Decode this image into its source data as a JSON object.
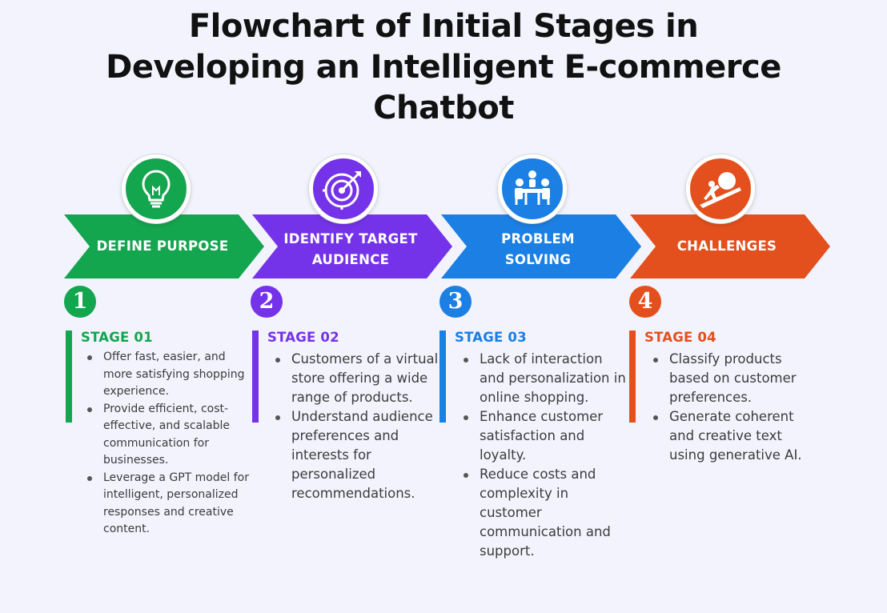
{
  "title": {
    "line1": "Flowchart of Initial Stages in",
    "line2": "Developing an Intelligent E-commerce",
    "line3": "Chatbot"
  },
  "colors": {
    "stage1": "#14a54f",
    "stage2": "#7433e8",
    "stage3": "#1b7fe3",
    "stage4": "#e4501d"
  },
  "stages": [
    {
      "icon": "lightbulb-icon",
      "arrow_lines": [
        "DEFINE PURPOSE"
      ],
      "number": "1",
      "stage_label": "STAGE 01",
      "bullets": [
        "Offer fast, easier, and more satisfying shopping experience.",
        "Provide efficient, cost-effective, and scalable communication for businesses.",
        "Leverage a GPT model for intelligent, personalized responses and creative content."
      ]
    },
    {
      "icon": "target-arrow-icon",
      "arrow_lines": [
        "IDENTIFY TARGET",
        "AUDIENCE"
      ],
      "number": "2",
      "stage_label": "STAGE 02",
      "bullets": [
        "Customers of a virtual store offering a wide range of products.",
        "Understand audience preferences and interests for personalized recommendations."
      ]
    },
    {
      "icon": "team-meeting-icon",
      "arrow_lines": [
        "PROBLEM",
        "SOLVING"
      ],
      "number": "3",
      "stage_label": "STAGE 03",
      "bullets": [
        "Lack of interaction and personalization in online shopping.",
        "Enhance customer satisfaction and loyalty.",
        "Reduce costs and complexity in customer communication and support."
      ]
    },
    {
      "icon": "boulder-push-icon",
      "arrow_lines": [
        "CHALLENGES"
      ],
      "number": "4",
      "stage_label": "STAGE 04",
      "bullets": [
        "Classify products based on customer preferences.",
        "Generate coherent and creative text using generative AI."
      ]
    }
  ]
}
